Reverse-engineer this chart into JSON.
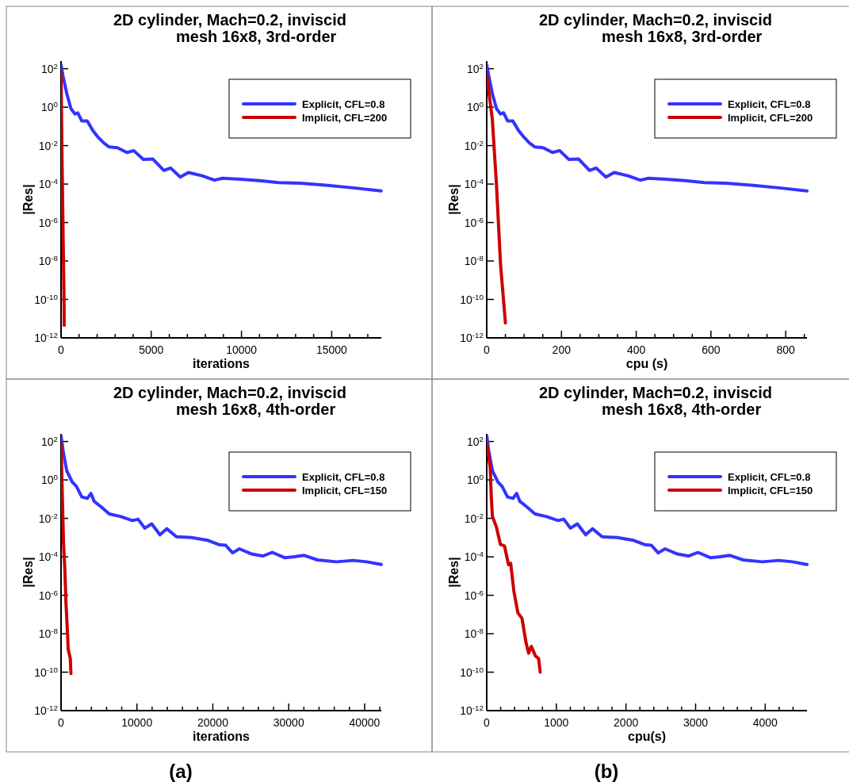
{
  "chart_data": [
    {
      "type": "line",
      "title": "2D cylinder, Mach=0.2, inviscid",
      "subtitle": "mesh 16x8, 3rd-order",
      "xlabel": "iterations",
      "ylabel": "|Res|",
      "log": "y",
      "legend": "top right",
      "grid": false,
      "xlim": [
        0,
        17750
      ],
      "xticks": [
        0,
        {
          "value": 1000,
          "label": null
        },
        {
          "value": 2000,
          "label": null
        },
        {
          "value": 3000,
          "label": null
        },
        {
          "value": 4000,
          "label": null
        },
        5000,
        {
          "value": 6000,
          "label": null
        },
        {
          "value": 7000,
          "label": null
        },
        {
          "value": 8000,
          "label": null
        },
        {
          "value": 9000,
          "label": null
        },
        10000,
        {
          "value": 11000,
          "label": null
        },
        {
          "value": 12000,
          "label": null
        },
        {
          "value": 13000,
          "label": null
        },
        {
          "value": 14000,
          "label": null
        },
        15000,
        {
          "value": 16000,
          "label": null
        },
        {
          "value": 17000,
          "label": null
        }
      ],
      "ylim": [
        1e-12,
        250
      ],
      "yticks": [
        {
          "value": 1e-12,
          "label": "10$^{-12}$"
        },
        {
          "value": 1e-10,
          "label": "10$^{-10}$"
        },
        {
          "value": 1e-08,
          "label": "10$^{-8}$"
        },
        {
          "value": 1e-06,
          "label": "10$^{-6}$"
        },
        {
          "value": 0.0001,
          "label": "10$^{-4}$"
        },
        {
          "value": 0.01,
          "label": "10$^{-2}$"
        },
        {
          "value": 1,
          "label": "10$^{0}$"
        },
        {
          "value": 100,
          "label": "10$^{2}$"
        }
      ],
      "series": [
        {
          "name": "Explicit, CFL=0.8",
          "color": "#3333ff",
          "x": [
            0,
            120,
            318,
            545,
            773,
            924,
            1152,
            1455,
            1758,
            2061,
            2364,
            2667,
            3121,
            3652,
            4030,
            4561,
            5091,
            5697,
            6076,
            6606,
            7061,
            7818,
            8500,
            8955,
            9939,
            11000,
            12061,
            13273,
            14788,
            16303,
            17742
          ],
          "values": [
            158,
            37,
            5.1,
            0.85,
            0.44,
            0.51,
            0.19,
            0.19,
            0.062,
            0.027,
            0.014,
            0.0085,
            0.0078,
            0.0044,
            0.0055,
            0.0019,
            0.002,
            0.00051,
            0.00068,
            0.00023,
            0.0004,
            0.00027,
            0.00016,
            0.0002,
            0.00018,
            0.00015,
            0.00012,
            0.00011,
            8.5e-05,
            6.2e-05,
            4.4e-05
          ]
        },
        {
          "name": "Implicit, CFL=200",
          "color": "#cc0000",
          "x": [
            0,
            60,
            120,
            165,
            175
          ],
          "values": [
            60,
            0.001,
            1e-07,
            1e-10,
            4.5e-12
          ]
        }
      ]
    },
    {
      "type": "line",
      "title": "2D cylinder, Mach=0.2, inviscid",
      "subtitle": "mesh 16x8, 3rd-order",
      "xlabel": "cpu (s)",
      "ylabel": "|Res|",
      "log": "y",
      "legend": "top right",
      "grid": false,
      "xlim": [
        0,
        857
      ],
      "xticks": [
        0,
        {
          "value": 50,
          "label": null
        },
        {
          "value": 100,
          "label": null
        },
        {
          "value": 150,
          "label": null
        },
        200,
        {
          "value": 250,
          "label": null
        },
        {
          "value": 300,
          "label": null
        },
        {
          "value": 350,
          "label": null
        },
        400,
        {
          "value": 450,
          "label": null
        },
        {
          "value": 500,
          "label": null
        },
        {
          "value": 550,
          "label": null
        },
        600,
        {
          "value": 650,
          "label": null
        },
        {
          "value": 700,
          "label": null
        },
        {
          "value": 750,
          "label": null
        },
        800,
        {
          "value": 850,
          "label": null
        }
      ],
      "ylim": [
        1e-12,
        250
      ],
      "yticks": [
        {
          "value": 1e-12,
          "label": "10$^{-12}$"
        },
        {
          "value": 1e-10,
          "label": "10$^{-10}$"
        },
        {
          "value": 1e-08,
          "label": "10$^{-8}$"
        },
        {
          "value": 1e-06,
          "label": "10$^{-6}$"
        },
        {
          "value": 0.0001,
          "label": "10$^{-4}$"
        },
        {
          "value": 0.01,
          "label": "10$^{-2}$"
        },
        {
          "value": 1,
          "label": "10$^{0}$"
        },
        {
          "value": 100,
          "label": "10$^{2}$"
        }
      ],
      "series": [
        {
          "name": "Explicit, CFL=0.8",
          "color": "#3333ff",
          "x": [
            0,
            6,
            15,
            26,
            37,
            45,
            56,
            70,
            85,
            100,
            114,
            129,
            151,
            176,
            195,
            220,
            246,
            275,
            293,
            319,
            341,
            378,
            411,
            433,
            480,
            531,
            583,
            641,
            714,
            788,
            857
          ],
          "values": [
            158,
            37,
            5.1,
            0.85,
            0.44,
            0.51,
            0.19,
            0.19,
            0.062,
            0.027,
            0.014,
            0.0085,
            0.0078,
            0.0044,
            0.0055,
            0.0019,
            0.002,
            0.00051,
            0.00068,
            0.00023,
            0.0004,
            0.00027,
            0.00016,
            0.0002,
            0.00018,
            0.00015,
            0.00012,
            0.00011,
            8.5e-05,
            6.2e-05,
            4.4e-05
          ]
        },
        {
          "name": "Implicit, CFL=200",
          "color": "#cc0000",
          "x": [
            0,
            15,
            26,
            37,
            50
          ],
          "values": [
            48,
            0.23,
            0.0001,
            6.5e-09,
            6e-12
          ]
        }
      ]
    },
    {
      "type": "line",
      "title": "2D cylinder, Mach=0.2, inviscid",
      "subtitle": "mesh 16x8, 4th-order",
      "xlabel": "iterations",
      "ylabel": "|Res|",
      "log": "y",
      "legend": "top right",
      "grid": false,
      "annotations": [
        "(a)"
      ],
      "xlim": [
        0,
        42200
      ],
      "xticks": [
        0,
        {
          "value": 2000,
          "label": null
        },
        {
          "value": 4000,
          "label": null
        },
        {
          "value": 6000,
          "label": null
        },
        {
          "value": 8000,
          "label": null
        },
        10000,
        {
          "value": 12000,
          "label": null
        },
        {
          "value": 14000,
          "label": null
        },
        {
          "value": 16000,
          "label": null
        },
        {
          "value": 18000,
          "label": null
        },
        20000,
        {
          "value": 22000,
          "label": null
        },
        {
          "value": 24000,
          "label": null
        },
        {
          "value": 26000,
          "label": null
        },
        {
          "value": 28000,
          "label": null
        },
        30000,
        {
          "value": 32000,
          "label": null
        },
        {
          "value": 34000,
          "label": null
        },
        {
          "value": 36000,
          "label": null
        },
        {
          "value": 38000,
          "label": null
        },
        40000,
        {
          "value": 42000,
          "label": null
        }
      ],
      "ylim": [
        1e-12,
        250
      ],
      "yticks": [
        {
          "value": 1e-12,
          "label": "10$^{-12}$"
        },
        {
          "value": 1e-10,
          "label": "10$^{-10}$"
        },
        {
          "value": 1e-08,
          "label": "10$^{-8}$"
        },
        {
          "value": 1e-06,
          "label": "10$^{-6}$"
        },
        {
          "value": 0.0001,
          "label": "10$^{-4}$"
        },
        {
          "value": 0.01,
          "label": "10$^{-2}$"
        },
        {
          "value": 1,
          "label": "10$^{0}$"
        },
        {
          "value": 100,
          "label": "10$^{2}$"
        }
      ],
      "series": [
        {
          "name": "Explicit, CFL=0.8",
          "color": "#3333ff",
          "x": [
            0,
            289,
            758,
            1480,
            2022,
            2744,
            3466,
            3935,
            4368,
            5271,
            6354,
            7798,
            9422,
            10144,
            11047,
            11949,
            13032,
            13935,
            15199,
            17184,
            19350,
            20794,
            21697,
            22599,
            23502,
            25126,
            26570,
            27834,
            29458,
            30722,
            31986,
            33791,
            36318,
            38484,
            40289,
            42200
          ],
          "values": [
            200,
            29,
            2.9,
            0.78,
            0.47,
            0.13,
            0.11,
            0.2,
            0.077,
            0.04,
            0.017,
            0.0126,
            0.0077,
            0.0091,
            0.0031,
            0.0052,
            0.0014,
            0.0029,
            0.0011,
            0.001,
            0.00072,
            0.00043,
            0.0004,
            0.00016,
            0.00026,
            0.00014,
            0.00011,
            0.00017,
            9e-05,
            0.0001,
            0.00012,
            6.9e-05,
            5.5e-05,
            6.5e-05,
            5.5e-05,
            4e-05
          ]
        },
        {
          "name": "Implicit, CFL=150",
          "color": "#cc0000",
          "x": [
            0,
            217,
            325,
            505,
            650,
            866,
            938,
            1227,
            1300
          ],
          "values": [
            80,
            0.029,
            0.00055,
            2e-05,
            4e-07,
            8e-09,
            1.6e-09,
            5e-10,
            8.5e-11
          ]
        }
      ]
    },
    {
      "type": "line",
      "title": "2D cylinder, Mach=0.2, inviscid",
      "subtitle": "mesh 16x8, 4th-order",
      "xlabel": "cpu(s)",
      "ylabel": "|Res|",
      "log": "y",
      "legend": "top right",
      "grid": false,
      "annotations": [
        "(b)"
      ],
      "xlim": [
        0,
        4600
      ],
      "xticks": [
        0,
        {
          "value": 200,
          "label": null
        },
        {
          "value": 400,
          "label": null
        },
        {
          "value": 600,
          "label": null
        },
        {
          "value": 800,
          "label": null
        },
        1000,
        {
          "value": 1200,
          "label": null
        },
        {
          "value": 1400,
          "label": null
        },
        {
          "value": 1600,
          "label": null
        },
        {
          "value": 1800,
          "label": null
        },
        2000,
        {
          "value": 2200,
          "label": null
        },
        {
          "value": 2400,
          "label": null
        },
        {
          "value": 2600,
          "label": null
        },
        {
          "value": 2800,
          "label": null
        },
        3000,
        {
          "value": 3200,
          "label": null
        },
        {
          "value": 3400,
          "label": null
        },
        {
          "value": 3600,
          "label": null
        },
        {
          "value": 3800,
          "label": null
        },
        4000,
        {
          "value": 4200,
          "label": null
        },
        {
          "value": 4400,
          "label": null
        }
      ],
      "ylim": [
        1e-12,
        250
      ],
      "yticks": [
        {
          "value": 1e-12,
          "label": "10$^{-12}$"
        },
        {
          "value": 1e-10,
          "label": "10$^{-10}$"
        },
        {
          "value": 1e-08,
          "label": "10$^{-8}$"
        },
        {
          "value": 1e-06,
          "label": "10$^{-6}$"
        },
        {
          "value": 0.0001,
          "label": "10$^{-4}$"
        },
        {
          "value": 0.01,
          "label": "10$^{-2}$"
        },
        {
          "value": 1,
          "label": "10$^{0}$"
        },
        {
          "value": 100,
          "label": "10$^{2}$"
        }
      ],
      "series": [
        {
          "name": "Explicit, CFL=0.8",
          "color": "#3333ff",
          "x": [
            0,
            31,
            83,
            161,
            220,
            299,
            378,
            429,
            476,
            575,
            693,
            850,
            1027,
            1106,
            1204,
            1302,
            1421,
            1519,
            1657,
            1873,
            2109,
            2267,
            2365,
            2463,
            2562,
            2739,
            2896,
            3034,
            3211,
            3349,
            3487,
            3683,
            3959,
            4195,
            4392,
            4600
          ],
          "values": [
            200,
            29,
            2.9,
            0.78,
            0.47,
            0.13,
            0.11,
            0.2,
            0.077,
            0.04,
            0.017,
            0.0126,
            0.0077,
            0.0091,
            0.0031,
            0.0052,
            0.0014,
            0.0029,
            0.0011,
            0.001,
            0.00072,
            0.00043,
            0.0004,
            0.00016,
            0.00026,
            0.00014,
            0.00011,
            0.00017,
            9e-05,
            0.0001,
            0.00012,
            6.9e-05,
            5.5e-05,
            6.5e-05,
            5.5e-05,
            4e-05
          ]
        },
        {
          "name": "Implicit, CFL=150",
          "color": "#cc0000",
          "x": [
            0,
            50,
            66,
            81,
            139,
            197,
            255,
            313,
            344,
            390,
            448,
            506,
            564,
            602,
            641,
            699,
            745,
            768
          ],
          "values": [
            78,
            4.3,
            0.12,
            0.013,
            0.0035,
            0.00044,
            0.00037,
            3.9e-05,
            4.6e-05,
            1.6e-06,
            1.2e-07,
            6.3e-08,
            3.5e-09,
            9.7e-10,
            2.2e-09,
            7e-10,
            5.1e-10,
            1e-10
          ]
        }
      ]
    }
  ]
}
